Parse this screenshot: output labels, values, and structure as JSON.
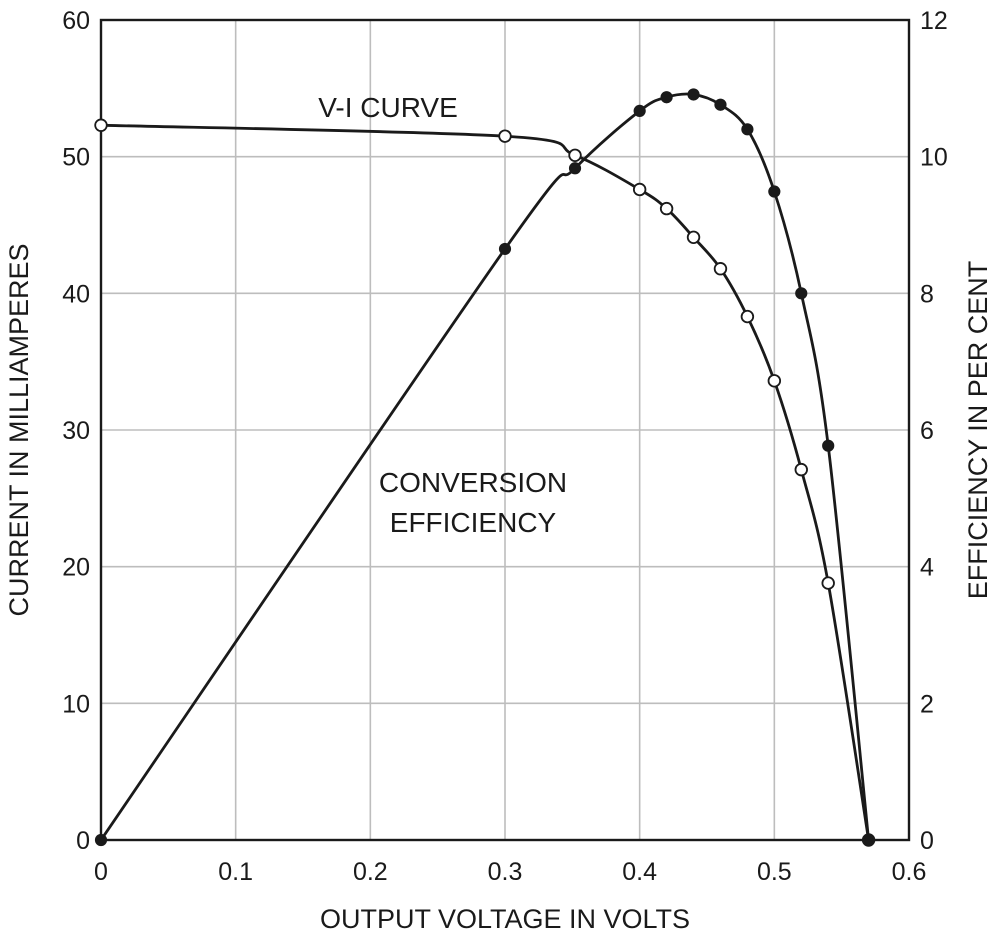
{
  "chart_data": {
    "type": "line",
    "xlabel": "OUTPUT VOLTAGE IN VOLTS",
    "ylabel_left": "CURRENT IN MILLIAMPERES",
    "ylabel_right": "EFFICIENCY IN PER CENT",
    "xlim": [
      0,
      0.6
    ],
    "ylim_left": [
      0,
      60
    ],
    "ylim_right": [
      0,
      12
    ],
    "x_ticks": [
      "0",
      "0.1",
      "0.2",
      "0.3",
      "0.4",
      "0.5",
      "0.6"
    ],
    "y_ticks_left": [
      "0",
      "10",
      "20",
      "30",
      "40",
      "50",
      "60"
    ],
    "y_ticks_right": [
      "0",
      "2",
      "4",
      "6",
      "8",
      "10",
      "12"
    ],
    "grid": true,
    "annotations": [
      {
        "text": "V-I CURVE"
      },
      {
        "text": "CONVERSION"
      },
      {
        "text": "EFFICIENCY"
      }
    ],
    "series": [
      {
        "axis": "left",
        "marker": "open-circle",
        "points": [
          [
            0,
            52.3
          ],
          [
            0.3,
            51.5
          ],
          [
            0.352,
            50.1
          ],
          [
            0.4,
            47.6
          ],
          [
            0.42,
            46.2
          ],
          [
            0.44,
            44.1
          ],
          [
            0.46,
            41.8
          ],
          [
            0.48,
            38.3
          ],
          [
            0.5,
            33.6
          ],
          [
            0.52,
            27.1
          ],
          [
            0.54,
            18.8
          ],
          [
            0.57,
            0
          ]
        ]
      },
      {
        "axis": "right",
        "marker": "filled-circle",
        "points": [
          [
            0,
            0
          ],
          [
            0.3,
            8.65
          ],
          [
            0.352,
            9.83
          ],
          [
            0.4,
            10.67
          ],
          [
            0.42,
            10.87
          ],
          [
            0.44,
            10.91
          ],
          [
            0.46,
            10.76
          ],
          [
            0.48,
            10.4
          ],
          [
            0.5,
            9.49
          ],
          [
            0.52,
            8.0
          ],
          [
            0.54,
            5.77
          ],
          [
            0.57,
            0
          ]
        ]
      }
    ]
  }
}
